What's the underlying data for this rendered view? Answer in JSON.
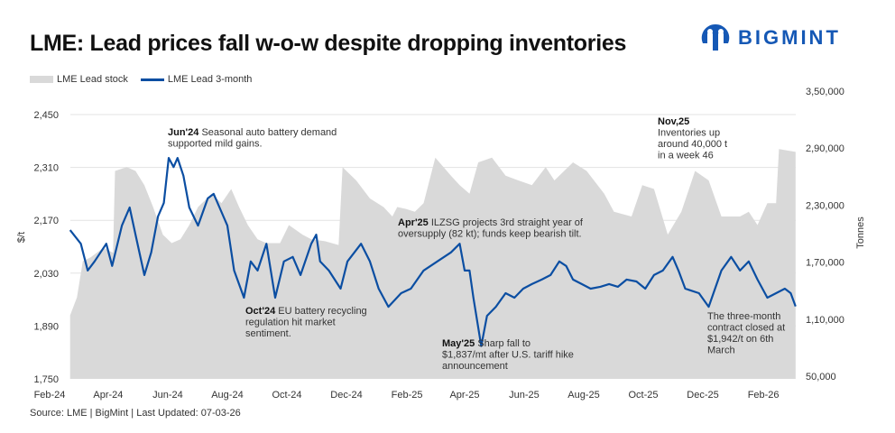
{
  "header": {
    "title": "LME: Lead prices fall w-o-w despite dropping inventories",
    "logo_text": "BIGMINT"
  },
  "footer": {
    "source": "Source: LME | BigMint | Last Updated: 07-03-26"
  },
  "colors": {
    "price_line": "#0b4ea2",
    "stock_area": "#d9d9d9",
    "brand": "#1558b5"
  },
  "chart_data": {
    "type": "line",
    "title": "LME: Lead prices fall w-o-w despite dropping inventories",
    "legend": {
      "placement": "top-left",
      "entries": [
        "LME Lead stock",
        "LME Lead 3-month"
      ]
    },
    "grid": true,
    "x_ticks": [
      "Feb-24",
      "Apr-24",
      "Jun-24",
      "Aug-24",
      "Oct-24",
      "Dec-24",
      "Feb-25",
      "Apr-25",
      "Jun-25",
      "Aug-25",
      "Oct-25",
      "Dec-25",
      "Feb-26"
    ],
    "y_left": {
      "label": "$/t",
      "range": [
        1750,
        2450
      ],
      "ticks": [
        "1,750",
        "1,890",
        "2,030",
        "2,170",
        "2,310",
        "2,450"
      ]
    },
    "y_right": {
      "label": "Tonnes",
      "range": [
        50000,
        350000
      ],
      "ticks": [
        "50,000",
        "1,10,000",
        "1,70,000",
        "2,30,000",
        "2,90,000",
        "3,50,000"
      ]
    },
    "series": [
      {
        "name": "LME Lead stock",
        "type": "area",
        "axis": "right",
        "points": [
          [
            "2024-02-22",
            114000
          ],
          [
            "2024-02-29",
            133000
          ],
          [
            "2024-03-06",
            171000
          ],
          [
            "2024-03-14",
            175000
          ],
          [
            "2024-03-27",
            185000
          ],
          [
            "2024-04-06",
            180000
          ],
          [
            "2024-04-08",
            266000
          ],
          [
            "2024-04-20",
            270000
          ],
          [
            "2024-04-29",
            266000
          ],
          [
            "2024-05-08",
            251000
          ],
          [
            "2024-05-17",
            228000
          ],
          [
            "2024-05-27",
            199000
          ],
          [
            "2024-06-05",
            190000
          ],
          [
            "2024-06-14",
            194000
          ],
          [
            "2024-06-23",
            209000
          ],
          [
            "2024-07-02",
            228000
          ],
          [
            "2024-07-16",
            242000
          ],
          [
            "2024-07-26",
            232000
          ],
          [
            "2024-08-05",
            247000
          ],
          [
            "2024-08-13",
            228000
          ],
          [
            "2024-08-22",
            209000
          ],
          [
            "2024-09-01",
            194000
          ],
          [
            "2024-09-10",
            190000
          ],
          [
            "2024-09-24",
            190000
          ],
          [
            "2024-10-03",
            209000
          ],
          [
            "2024-10-17",
            199000
          ],
          [
            "2024-10-26",
            194000
          ],
          [
            "2024-11-09",
            192000
          ],
          [
            "2024-11-23",
            188000
          ],
          [
            "2024-11-27",
            270000
          ],
          [
            "2024-12-11",
            256000
          ],
          [
            "2024-12-25",
            237000
          ],
          [
            "2025-01-08",
            228000
          ],
          [
            "2025-01-17",
            218000
          ],
          [
            "2025-01-22",
            228000
          ],
          [
            "2025-01-31",
            226000
          ],
          [
            "2025-02-09",
            223000
          ],
          [
            "2025-02-18",
            232000
          ],
          [
            "2025-03-02",
            280000
          ],
          [
            "2025-03-18",
            261000
          ],
          [
            "2025-03-27",
            251000
          ],
          [
            "2025-04-06",
            242000
          ],
          [
            "2025-04-15",
            275000
          ],
          [
            "2025-04-29",
            280000
          ],
          [
            "2025-05-13",
            261000
          ],
          [
            "2025-05-26",
            256000
          ],
          [
            "2025-06-09",
            251000
          ],
          [
            "2025-06-23",
            270000
          ],
          [
            "2025-07-02",
            256000
          ],
          [
            "2025-07-12",
            266000
          ],
          [
            "2025-07-21",
            275000
          ],
          [
            "2025-08-04",
            266000
          ],
          [
            "2025-08-22",
            242000
          ],
          [
            "2025-09-01",
            223000
          ],
          [
            "2025-09-19",
            218000
          ],
          [
            "2025-09-30",
            251000
          ],
          [
            "2025-10-12",
            247000
          ],
          [
            "2025-10-26",
            199000
          ],
          [
            "2025-11-09",
            223000
          ],
          [
            "2025-11-23",
            266000
          ],
          [
            "2025-12-07",
            256000
          ],
          [
            "2025-12-20",
            218000
          ],
          [
            "2026-01-08",
            218000
          ],
          [
            "2026-01-17",
            223000
          ],
          [
            "2026-01-26",
            209000
          ],
          [
            "2026-02-05",
            232000
          ],
          [
            "2026-02-14",
            232000
          ],
          [
            "2026-02-17",
            289000
          ],
          [
            "2026-03-06",
            286000
          ]
        ]
      },
      {
        "name": "LME Lead 3-month",
        "type": "line",
        "axis": "left",
        "points": [
          [
            "2024-02-22",
            2144
          ],
          [
            "2024-03-04",
            2108
          ],
          [
            "2024-03-11",
            2037
          ],
          [
            "2024-03-18",
            2061
          ],
          [
            "2024-03-30",
            2108
          ],
          [
            "2024-04-05",
            2049
          ],
          [
            "2024-04-15",
            2156
          ],
          [
            "2024-04-23",
            2204
          ],
          [
            "2024-04-29",
            2132
          ],
          [
            "2024-05-08",
            2025
          ],
          [
            "2024-05-15",
            2085
          ],
          [
            "2024-05-22",
            2180
          ],
          [
            "2024-05-28",
            2216
          ],
          [
            "2024-06-02",
            2335
          ],
          [
            "2024-06-07",
            2311
          ],
          [
            "2024-06-11",
            2335
          ],
          [
            "2024-06-17",
            2288
          ],
          [
            "2024-06-23",
            2204
          ],
          [
            "2024-07-02",
            2156
          ],
          [
            "2024-07-12",
            2228
          ],
          [
            "2024-07-18",
            2240
          ],
          [
            "2024-07-26",
            2192
          ],
          [
            "2024-08-01",
            2156
          ],
          [
            "2024-08-08",
            2037
          ],
          [
            "2024-08-18",
            1965
          ],
          [
            "2024-08-25",
            2061
          ],
          [
            "2024-09-01",
            2037
          ],
          [
            "2024-09-10",
            2108
          ],
          [
            "2024-09-19",
            1965
          ],
          [
            "2024-09-28",
            2061
          ],
          [
            "2024-10-07",
            2073
          ],
          [
            "2024-10-15",
            2025
          ],
          [
            "2024-10-26",
            2108
          ],
          [
            "2024-10-31",
            2132
          ],
          [
            "2024-11-04",
            2061
          ],
          [
            "2024-11-13",
            2037
          ],
          [
            "2024-11-25",
            1989
          ],
          [
            "2024-12-02",
            2061
          ],
          [
            "2024-12-16",
            2108
          ],
          [
            "2024-12-25",
            2061
          ],
          [
            "2025-01-03",
            1989
          ],
          [
            "2025-01-13",
            1941
          ],
          [
            "2025-01-26",
            1977
          ],
          [
            "2025-02-05",
            1989
          ],
          [
            "2025-02-18",
            2037
          ],
          [
            "2025-03-04",
            2061
          ],
          [
            "2025-03-18",
            2085
          ],
          [
            "2025-03-27",
            2108
          ],
          [
            "2025-04-01",
            2037
          ],
          [
            "2025-04-06",
            2037
          ],
          [
            "2025-04-10",
            1965
          ],
          [
            "2025-04-18",
            1837
          ],
          [
            "2025-04-24",
            1917
          ],
          [
            "2025-05-03",
            1941
          ],
          [
            "2025-05-13",
            1977
          ],
          [
            "2025-05-22",
            1965
          ],
          [
            "2025-05-31",
            1989
          ],
          [
            "2025-06-09",
            2001
          ],
          [
            "2025-06-19",
            2013
          ],
          [
            "2025-06-28",
            2025
          ],
          [
            "2025-07-07",
            2061
          ],
          [
            "2025-07-14",
            2049
          ],
          [
            "2025-07-21",
            2013
          ],
          [
            "2025-07-30",
            2001
          ],
          [
            "2025-08-08",
            1989
          ],
          [
            "2025-08-18",
            1994
          ],
          [
            "2025-08-27",
            2001
          ],
          [
            "2025-09-05",
            1994
          ],
          [
            "2025-09-14",
            2013
          ],
          [
            "2025-09-24",
            2008
          ],
          [
            "2025-10-03",
            1989
          ],
          [
            "2025-10-12",
            2025
          ],
          [
            "2025-10-21",
            2037
          ],
          [
            "2025-10-31",
            2073
          ],
          [
            "2025-11-06",
            2037
          ],
          [
            "2025-11-13",
            1989
          ],
          [
            "2025-11-27",
            1977
          ],
          [
            "2025-12-07",
            1941
          ],
          [
            "2025-12-20",
            2037
          ],
          [
            "2025-12-30",
            2073
          ],
          [
            "2026-01-08",
            2037
          ],
          [
            "2026-01-17",
            2061
          ],
          [
            "2026-01-26",
            2013
          ],
          [
            "2026-02-05",
            1965
          ],
          [
            "2026-02-14",
            1977
          ],
          [
            "2026-02-23",
            1989
          ],
          [
            "2026-03-01",
            1977
          ],
          [
            "2026-03-06",
            1942
          ]
        ]
      }
    ],
    "annotations": [
      {
        "bold": "Jun'24",
        "lines": [
          "Seasonal auto battery demand",
          "supported mild gains."
        ]
      },
      {
        "bold": "Oct'24",
        "lines": [
          "EU battery recycling",
          "regulation hit market",
          "sentiment."
        ]
      },
      {
        "bold": "Apr'25",
        "lines": [
          "ILZSG projects 3rd straight year of",
          "oversupply (82 kt); funds keep bearish tilt."
        ]
      },
      {
        "bold": "May'25",
        "lines": [
          "Sharp fall to",
          "$1,837/mt after U.S. tariff hike",
          "announcement"
        ]
      },
      {
        "bold": "Nov,25",
        "lines": [
          "Inventories up",
          "around 40,000 t",
          "in a week 46"
        ]
      },
      {
        "bold": "",
        "lines": [
          "The three-month",
          "contract closed at",
          "$1,942/t on 6th",
          "March"
        ]
      }
    ]
  }
}
